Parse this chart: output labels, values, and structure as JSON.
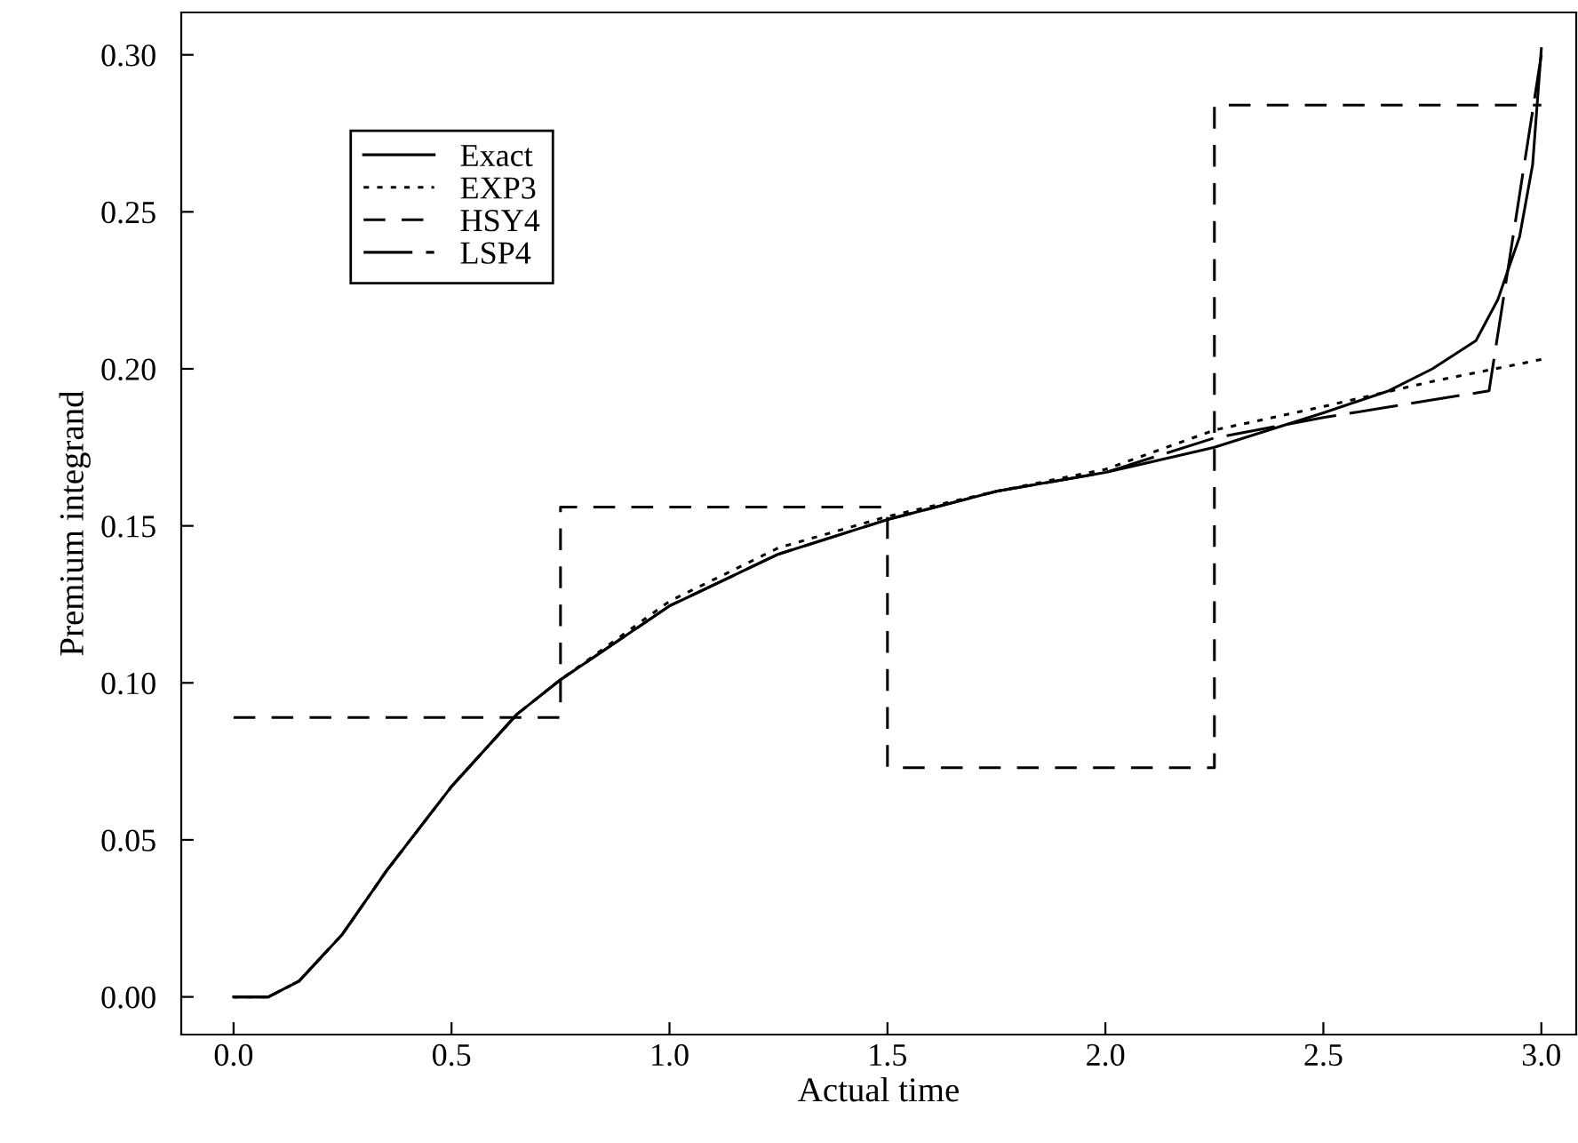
{
  "chart_data": {
    "type": "line",
    "xlabel": "Actual time",
    "ylabel": "Premium integrand",
    "xlim": [
      -0.12,
      3.08
    ],
    "ylim": [
      -0.012,
      0.3135
    ],
    "xticks": [
      {
        "value": 0,
        "label": "0.0"
      },
      0.5,
      {
        "value": 1,
        "label": "1.0"
      },
      1.5,
      {
        "value": 2,
        "label": "2.0"
      },
      2.5,
      {
        "value": 3,
        "label": "3.0"
      }
    ],
    "yticks": [
      {
        "value": 0,
        "label": "0.00"
      },
      0.05,
      {
        "value": 0.1,
        "label": "0.10"
      },
      0.15,
      {
        "value": 0.2,
        "label": "0.20"
      },
      0.25,
      {
        "value": 0.3,
        "label": "0.30"
      }
    ],
    "grid": false,
    "legend": "top left",
    "series": [
      {
        "name": "Exact",
        "color": "#000000",
        "line_style": "solid",
        "x": [
          0,
          0.08,
          0.15,
          0.25,
          0.35,
          0.5,
          0.65,
          0.75,
          1.0,
          1.25,
          1.5,
          1.75,
          2.0,
          2.25,
          2.5,
          2.65,
          2.75,
          2.85,
          2.9,
          2.95,
          2.98,
          3.0
        ],
        "values": [
          0,
          0,
          0.005,
          0.02,
          0.04,
          0.067,
          0.09,
          0.101,
          0.1245,
          0.141,
          0.152,
          0.161,
          0.167,
          0.175,
          0.186,
          0.193,
          0.2,
          0.209,
          0.222,
          0.242,
          0.265,
          0.302
        ]
      },
      {
        "name": "EXP3",
        "color": "#000000",
        "line_style": "dotted",
        "x": [
          0,
          0.08,
          0.15,
          0.25,
          0.35,
          0.5,
          0.65,
          0.75,
          1.0,
          1.25,
          1.5,
          1.75,
          2.0,
          2.25,
          2.5,
          2.75,
          3.0
        ],
        "values": [
          0,
          0,
          0.005,
          0.02,
          0.04,
          0.067,
          0.09,
          0.101,
          0.126,
          0.143,
          0.153,
          0.161,
          0.168,
          0.1805,
          0.188,
          0.196,
          0.203
        ]
      },
      {
        "name": "HSY4",
        "color": "#000000",
        "line_style": "dashed",
        "type": "step",
        "x": [
          0,
          0.75,
          1.5,
          2.25,
          3.0
        ],
        "values": [
          0.089,
          0.156,
          0.073,
          0.284,
          0.284
        ]
      },
      {
        "name": "LSP4",
        "color": "#000000",
        "line_style": "longdash",
        "x": [
          0,
          0.08,
          0.15,
          0.25,
          0.35,
          0.5,
          0.65,
          0.75,
          1.0,
          1.25,
          1.5,
          1.75,
          2.0,
          2.25,
          2.5,
          2.88,
          3.0
        ],
        "values": [
          0,
          0,
          0.005,
          0.02,
          0.04,
          0.067,
          0.09,
          0.101,
          0.1245,
          0.141,
          0.152,
          0.161,
          0.167,
          0.178,
          0.1845,
          0.193,
          0.3
        ]
      }
    ]
  }
}
